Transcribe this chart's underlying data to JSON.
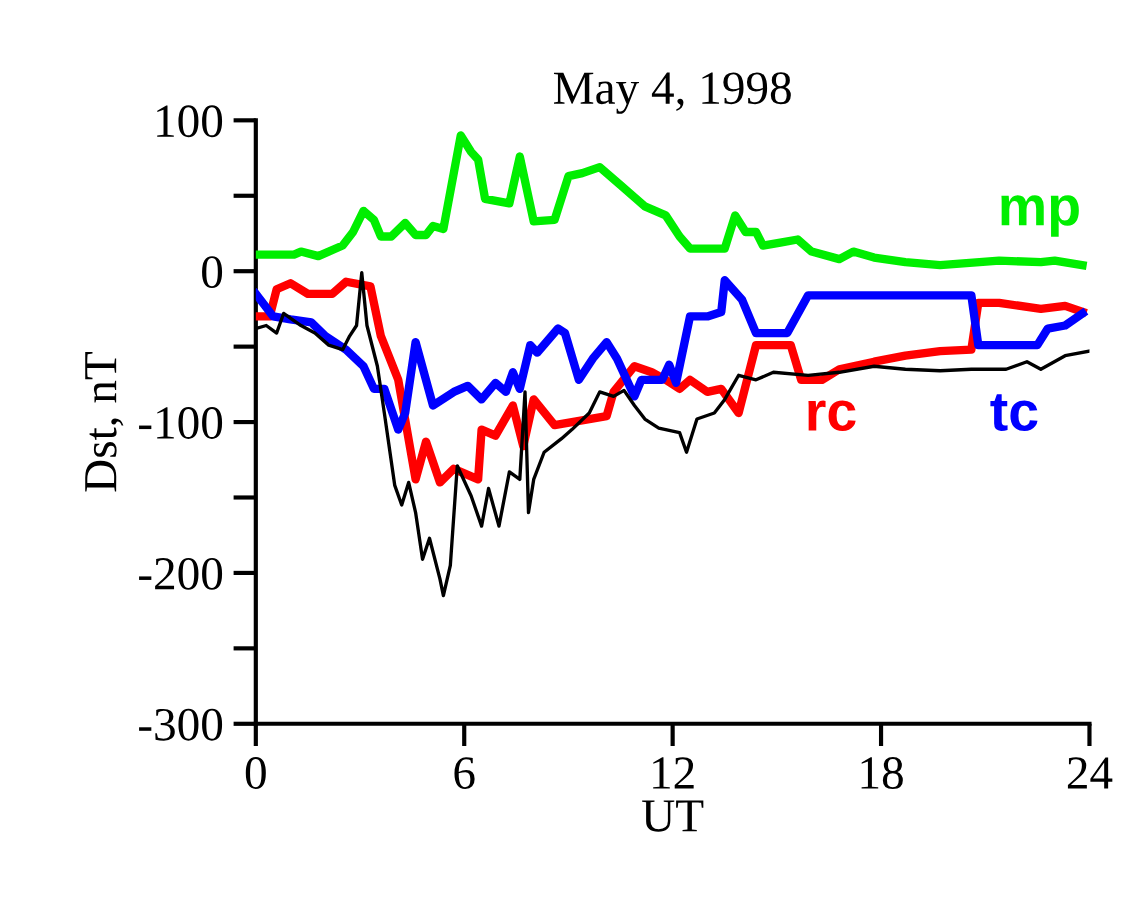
{
  "chart_data": {
    "type": "line",
    "title": "May 4, 1998",
    "xlabel": "UT",
    "ylabel": "Dst, nT",
    "xlim": [
      0,
      24
    ],
    "xticks": [
      0,
      6,
      12,
      18,
      24
    ],
    "ylim": [
      -300,
      100
    ],
    "yticks": [
      {
        "value": -300,
        "label": "-300"
      },
      {
        "value": -250,
        "label": null
      },
      {
        "value": -200,
        "label": "-200"
      },
      {
        "value": -150,
        "label": null
      },
      {
        "value": -100,
        "label": "-100"
      },
      {
        "value": -50,
        "label": null
      },
      0,
      {
        "value": 50,
        "label": null
      },
      100
    ],
    "grid": false,
    "legend": false,
    "marker": "none",
    "line_style": "solid",
    "series": [
      {
        "name": "mp",
        "color": "#00ee00",
        "x": [
          0,
          1.1,
          1.3,
          1.8,
          2.5,
          2.8,
          3.1,
          3.4,
          3.6,
          3.9,
          4.3,
          4.6,
          4.9,
          5.1,
          5.4,
          5.9,
          6.2,
          6.4,
          6.6,
          7.3,
          7.6,
          8.0,
          8.6,
          9.0,
          9.4,
          9.9,
          10.5,
          11.2,
          11.8,
          12.2,
          12.5,
          13.5,
          13.8,
          14.1,
          14.4,
          14.6,
          15.1,
          15.6,
          16.0,
          16.8,
          17.2,
          17.8,
          18.7,
          19.7,
          21.4,
          22.6,
          23.0,
          23.8
        ],
        "values": [
          11,
          11,
          13,
          10,
          17,
          26,
          40,
          34,
          23,
          23,
          32,
          24,
          24,
          30,
          28,
          90,
          79,
          74,
          48,
          45,
          76,
          33,
          34,
          63,
          65,
          69,
          57,
          43,
          37,
          23,
          15,
          15,
          37,
          26,
          26,
          17,
          19,
          21,
          13,
          8,
          13,
          9,
          6,
          4,
          7,
          6,
          7,
          4
        ]
      },
      {
        "name": "rc",
        "color": "#ff0000",
        "x": [
          0,
          0.4,
          0.6,
          1.0,
          1.5,
          2.2,
          2.6,
          3.3,
          3.6,
          4.1,
          4.6,
          4.9,
          5.3,
          5.7,
          6.4,
          6.5,
          6.9,
          7.4,
          7.7,
          8.0,
          8.6,
          9.1,
          10.1,
          10.3,
          10.9,
          11.4,
          11.8,
          12.2,
          12.5,
          13.0,
          13.4,
          13.9,
          14.4,
          15.4,
          15.7,
          16.3,
          16.8,
          17.8,
          18.7,
          19.7,
          20.6,
          20.8,
          21.4,
          22.6,
          23.3,
          23.8
        ],
        "values": [
          -30,
          -30,
          -12,
          -8,
          -15,
          -15,
          -7,
          -10,
          -43,
          -72,
          -138,
          -113,
          -140,
          -131,
          -138,
          -105,
          -109,
          -89,
          -116,
          -85,
          -102,
          -100,
          -96,
          -80,
          -63,
          -67,
          -72,
          -78,
          -72,
          -80,
          -78,
          -94,
          -49,
          -49,
          -72,
          -72,
          -65,
          -60,
          -56,
          -53,
          -52,
          -21,
          -21,
          -25,
          -23,
          -27
        ]
      },
      {
        "name": "tc",
        "color": "#0000ff",
        "x": [
          0,
          0.5,
          1.0,
          1.6,
          2.0,
          2.6,
          3.1,
          3.4,
          3.7,
          4.1,
          4.3,
          4.6,
          5.1,
          5.7,
          6.1,
          6.5,
          6.9,
          7.2,
          7.4,
          7.6,
          7.9,
          8.1,
          8.7,
          8.9,
          9.3,
          9.7,
          10.1,
          10.4,
          10.9,
          11.1,
          11.7,
          11.9,
          12.1,
          12.5,
          13.0,
          13.4,
          13.5,
          14.0,
          14.4,
          15.3,
          15.9,
          20.6,
          20.8,
          21.9,
          22.5,
          22.8,
          23.3,
          23.8
        ],
        "values": [
          -15,
          -30,
          -32,
          -34,
          -43,
          -52,
          -63,
          -78,
          -78,
          -105,
          -94,
          -47,
          -89,
          -80,
          -76,
          -85,
          -74,
          -80,
          -67,
          -78,
          -49,
          -54,
          -38,
          -41,
          -72,
          -58,
          -47,
          -58,
          -83,
          -72,
          -72,
          -62,
          -74,
          -30,
          -30,
          -27,
          -6,
          -19,
          -41,
          -41,
          -16,
          -16,
          -49,
          -49,
          -49,
          -38,
          -36,
          -28
        ]
      },
      {
        "color": "#000000",
        "x": [
          0,
          0.3,
          0.6,
          0.8,
          1.3,
          1.7,
          2.1,
          2.5,
          2.7,
          2.9,
          3.05,
          3.2,
          3.5,
          3.7,
          4.0,
          4.2,
          4.4,
          4.6,
          4.8,
          5.0,
          5.3,
          5.4,
          5.6,
          5.8,
          6.2,
          6.5,
          6.7,
          7.0,
          7.3,
          7.6,
          7.75,
          7.85,
          8.0,
          8.3,
          8.8,
          9.1,
          9.6,
          9.9,
          10.3,
          10.6,
          10.9,
          11.2,
          11.6,
          12.2,
          12.4,
          12.7,
          13.2,
          13.5,
          13.9,
          14.4,
          14.9,
          15.9,
          16.8,
          17.8,
          18.7,
          19.7,
          20.6,
          21.6,
          22.2,
          22.6,
          23.3,
          24
        ],
        "values": [
          -38,
          -36,
          -41,
          -28,
          -36,
          -41,
          -49,
          -52,
          -43,
          -36,
          -1,
          -36,
          -63,
          -94,
          -142,
          -155,
          -140,
          -160,
          -191,
          -177,
          -204,
          -215,
          -195,
          -129,
          -149,
          -169,
          -144,
          -169,
          -133,
          -138,
          -80,
          -160,
          -138,
          -120,
          -111,
          -105,
          -94,
          -80,
          -83,
          -79,
          -89,
          -98,
          -104,
          -107,
          -120,
          -98,
          -94,
          -85,
          -69,
          -72,
          -67,
          -69,
          -67,
          -63,
          -65,
          -66,
          -65,
          -65,
          -60,
          -65,
          -56,
          -53
        ]
      }
    ]
  }
}
